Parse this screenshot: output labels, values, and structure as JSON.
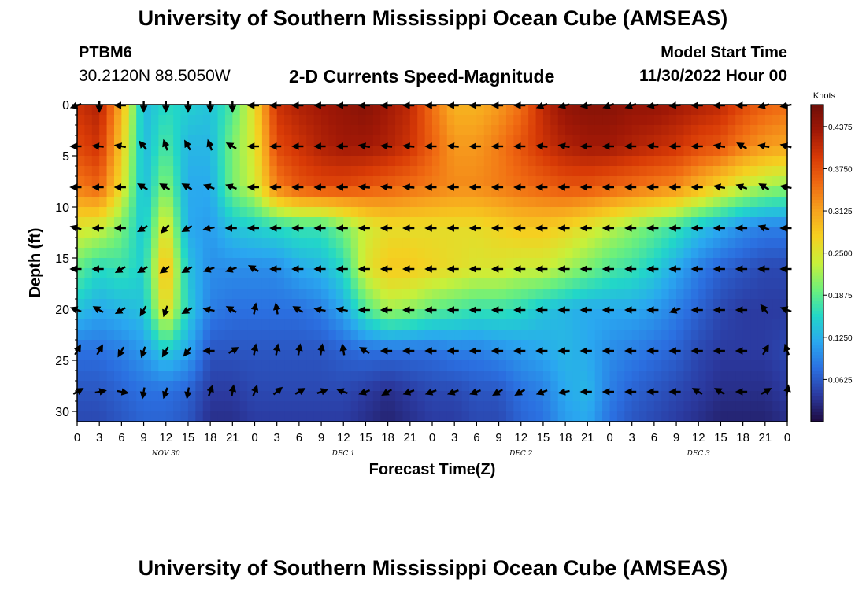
{
  "header": {
    "title": "University of Southern Mississippi Ocean Cube (AMSEAS)",
    "station": "PTBM6",
    "coords": "30.2120N  88.5050W",
    "subtitle": "2-D Currents Speed-Magnitude",
    "model_label": "Model Start Time",
    "model_date": "11/30/2022 Hour 00"
  },
  "footer": {
    "title": "University of Southern Mississippi Ocean Cube (AMSEAS)"
  },
  "chart_data": {
    "type": "heatmap",
    "title": "2-D Currents Speed-Magnitude",
    "xlabel": "Forecast Time(Z)",
    "ylabel": "Depth (ft)",
    "x_ticks": [
      "0",
      "3",
      "6",
      "9",
      "12",
      "15",
      "18",
      "21",
      "0",
      "3",
      "6",
      "9",
      "12",
      "15",
      "18",
      "21",
      "0",
      "3",
      "6",
      "9",
      "12",
      "15",
      "18",
      "21",
      "0",
      "3",
      "6",
      "9",
      "12",
      "15",
      "18",
      "21",
      "0"
    ],
    "x_hours_range": [
      0,
      96
    ],
    "day_labels": [
      {
        "hour": 12,
        "label": "NOV 30"
      },
      {
        "hour": 36,
        "label": "DEC 1"
      },
      {
        "hour": 60,
        "label": "DEC 2"
      },
      {
        "hour": 84,
        "label": "DEC 3"
      }
    ],
    "y_ticks": [
      "0",
      "5",
      "10",
      "15",
      "20",
      "25",
      "30"
    ],
    "ylim": [
      0,
      31
    ],
    "colorbar": {
      "unit": "Knots",
      "ticks": [
        "0.4375",
        "0.3750",
        "0.3125",
        "0.2500",
        "0.1875",
        "0.1250",
        "0.0625"
      ],
      "range": [
        0,
        0.47
      ],
      "colors": [
        "#1e0a40",
        "#2b3aa0",
        "#2b6fe0",
        "#2aa7f0",
        "#22d7c8",
        "#6ef07a",
        "#c8f03a",
        "#f5d020",
        "#f7a21e",
        "#f06a12",
        "#d83a06",
        "#a01806",
        "#6e0e08"
      ]
    },
    "speed_knots": {
      "hours": [
        0,
        3,
        6,
        9,
        12,
        15,
        18,
        21,
        24,
        27,
        30,
        33,
        36,
        39,
        42,
        45,
        48,
        51,
        54,
        57,
        60,
        63,
        66,
        69,
        72,
        75,
        78,
        81,
        84,
        87,
        90,
        93,
        96
      ],
      "depths_ft": [
        0,
        4,
        8,
        12,
        16,
        20,
        24,
        28,
        31
      ],
      "rows": [
        [
          0.4,
          0.42,
          0.3,
          0.13,
          0.16,
          0.15,
          0.14,
          0.18,
          0.26,
          0.4,
          0.42,
          0.43,
          0.44,
          0.45,
          0.43,
          0.41,
          0.35,
          0.3,
          0.3,
          0.32,
          0.35,
          0.41,
          0.44,
          0.45,
          0.45,
          0.44,
          0.44,
          0.43,
          0.42,
          0.41,
          0.38,
          0.36,
          0.35
        ],
        [
          0.38,
          0.4,
          0.28,
          0.13,
          0.18,
          0.13,
          0.13,
          0.2,
          0.25,
          0.38,
          0.4,
          0.42,
          0.43,
          0.43,
          0.42,
          0.4,
          0.36,
          0.32,
          0.32,
          0.34,
          0.37,
          0.4,
          0.42,
          0.43,
          0.43,
          0.42,
          0.41,
          0.4,
          0.38,
          0.37,
          0.34,
          0.32,
          0.31
        ],
        [
          0.34,
          0.36,
          0.26,
          0.13,
          0.21,
          0.12,
          0.12,
          0.2,
          0.24,
          0.34,
          0.37,
          0.38,
          0.38,
          0.37,
          0.36,
          0.35,
          0.34,
          0.33,
          0.33,
          0.34,
          0.35,
          0.36,
          0.37,
          0.37,
          0.36,
          0.35,
          0.34,
          0.33,
          0.3,
          0.27,
          0.24,
          0.22,
          0.21
        ],
        [
          0.25,
          0.24,
          0.2,
          0.14,
          0.26,
          0.12,
          0.11,
          0.14,
          0.15,
          0.16,
          0.17,
          0.17,
          0.2,
          0.24,
          0.26,
          0.26,
          0.26,
          0.26,
          0.26,
          0.27,
          0.28,
          0.28,
          0.27,
          0.25,
          0.23,
          0.21,
          0.19,
          0.17,
          0.14,
          0.12,
          0.1,
          0.09,
          0.09
        ],
        [
          0.19,
          0.16,
          0.17,
          0.15,
          0.3,
          0.14,
          0.1,
          0.1,
          0.1,
          0.1,
          0.12,
          0.13,
          0.16,
          0.25,
          0.28,
          0.28,
          0.27,
          0.26,
          0.25,
          0.25,
          0.24,
          0.24,
          0.22,
          0.2,
          0.18,
          0.17,
          0.15,
          0.12,
          0.09,
          0.07,
          0.06,
          0.05,
          0.05
        ],
        [
          0.14,
          0.12,
          0.13,
          0.14,
          0.27,
          0.15,
          0.09,
          0.08,
          0.08,
          0.08,
          0.08,
          0.09,
          0.12,
          0.18,
          0.22,
          0.21,
          0.19,
          0.18,
          0.17,
          0.17,
          0.16,
          0.14,
          0.13,
          0.12,
          0.12,
          0.12,
          0.11,
          0.09,
          0.07,
          0.05,
          0.04,
          0.04,
          0.04
        ],
        [
          0.08,
          0.08,
          0.09,
          0.11,
          0.15,
          0.12,
          0.06,
          0.06,
          0.06,
          0.06,
          0.06,
          0.06,
          0.07,
          0.08,
          0.08,
          0.08,
          0.08,
          0.09,
          0.09,
          0.1,
          0.11,
          0.12,
          0.13,
          0.12,
          0.1,
          0.09,
          0.08,
          0.07,
          0.05,
          0.04,
          0.04,
          0.04,
          0.05
        ],
        [
          0.06,
          0.06,
          0.07,
          0.08,
          0.08,
          0.07,
          0.04,
          0.04,
          0.05,
          0.05,
          0.05,
          0.05,
          0.05,
          0.04,
          0.03,
          0.04,
          0.05,
          0.05,
          0.06,
          0.06,
          0.08,
          0.09,
          0.12,
          0.13,
          0.09,
          0.07,
          0.06,
          0.05,
          0.04,
          0.03,
          0.03,
          0.03,
          0.04
        ],
        [
          0.05,
          0.05,
          0.06,
          0.07,
          0.07,
          0.06,
          0.03,
          0.03,
          0.04,
          0.04,
          0.04,
          0.04,
          0.04,
          0.03,
          0.02,
          0.03,
          0.04,
          0.04,
          0.05,
          0.05,
          0.07,
          0.08,
          0.11,
          0.12,
          0.08,
          0.06,
          0.05,
          0.04,
          0.03,
          0.02,
          0.02,
          0.02,
          0.03
        ]
      ]
    },
    "vectors": {
      "hours": [
        0,
        3,
        6,
        9,
        12,
        15,
        18,
        21,
        24,
        27,
        30,
        33,
        36,
        39,
        42,
        45,
        48,
        51,
        54,
        57,
        60,
        63,
        66,
        69,
        72,
        75,
        78,
        81,
        84,
        87,
        90,
        93,
        96
      ],
      "depths_ft": [
        0,
        4,
        8,
        12,
        16,
        20,
        24,
        28
      ],
      "direction_deg": [
        [
          250,
          180,
          270,
          180,
          180,
          180,
          180,
          180,
          270,
          270,
          270,
          270,
          270,
          270,
          270,
          270,
          270,
          270,
          270,
          270,
          270,
          250,
          255,
          260,
          250,
          250,
          260,
          265,
          270,
          270,
          270,
          255,
          260
        ],
        [
          270,
          275,
          280,
          320,
          340,
          330,
          340,
          300,
          270,
          270,
          270,
          270,
          270,
          280,
          275,
          275,
          270,
          275,
          270,
          270,
          270,
          275,
          280,
          270,
          270,
          270,
          275,
          270,
          270,
          280,
          300,
          280,
          285
        ],
        [
          270,
          270,
          270,
          300,
          300,
          300,
          290,
          290,
          270,
          270,
          270,
          270,
          270,
          275,
          275,
          275,
          270,
          270,
          270,
          270,
          270,
          270,
          270,
          270,
          270,
          270,
          270,
          270,
          270,
          280,
          290,
          300,
          280
        ],
        [
          285,
          270,
          270,
          240,
          225,
          240,
          260,
          270,
          270,
          270,
          270,
          270,
          270,
          270,
          270,
          270,
          270,
          270,
          270,
          270,
          270,
          270,
          270,
          270,
          270,
          270,
          270,
          270,
          270,
          270,
          270,
          290,
          270
        ],
        [
          270,
          270,
          240,
          240,
          235,
          240,
          250,
          250,
          300,
          270,
          270,
          270,
          270,
          270,
          270,
          270,
          270,
          270,
          270,
          270,
          270,
          270,
          270,
          270,
          270,
          270,
          270,
          270,
          270,
          270,
          270,
          270,
          270
        ],
        [
          290,
          300,
          240,
          210,
          200,
          240,
          280,
          300,
          10,
          350,
          300,
          280,
          280,
          270,
          270,
          270,
          270,
          270,
          270,
          270,
          270,
          270,
          270,
          270,
          270,
          270,
          270,
          250,
          270,
          270,
          270,
          320,
          290
        ],
        [
          30,
          30,
          210,
          200,
          210,
          220,
          270,
          60,
          10,
          10,
          10,
          10,
          350,
          300,
          270,
          270,
          270,
          270,
          270,
          270,
          270,
          270,
          270,
          270,
          270,
          270,
          270,
          270,
          270,
          270,
          270,
          30,
          340
        ],
        [
          60,
          80,
          100,
          190,
          200,
          190,
          20,
          10,
          20,
          50,
          60,
          70,
          290,
          250,
          240,
          250,
          250,
          250,
          250,
          240,
          240,
          250,
          260,
          270,
          270,
          270,
          270,
          270,
          300,
          300,
          270,
          60,
          10
        ]
      ]
    }
  }
}
